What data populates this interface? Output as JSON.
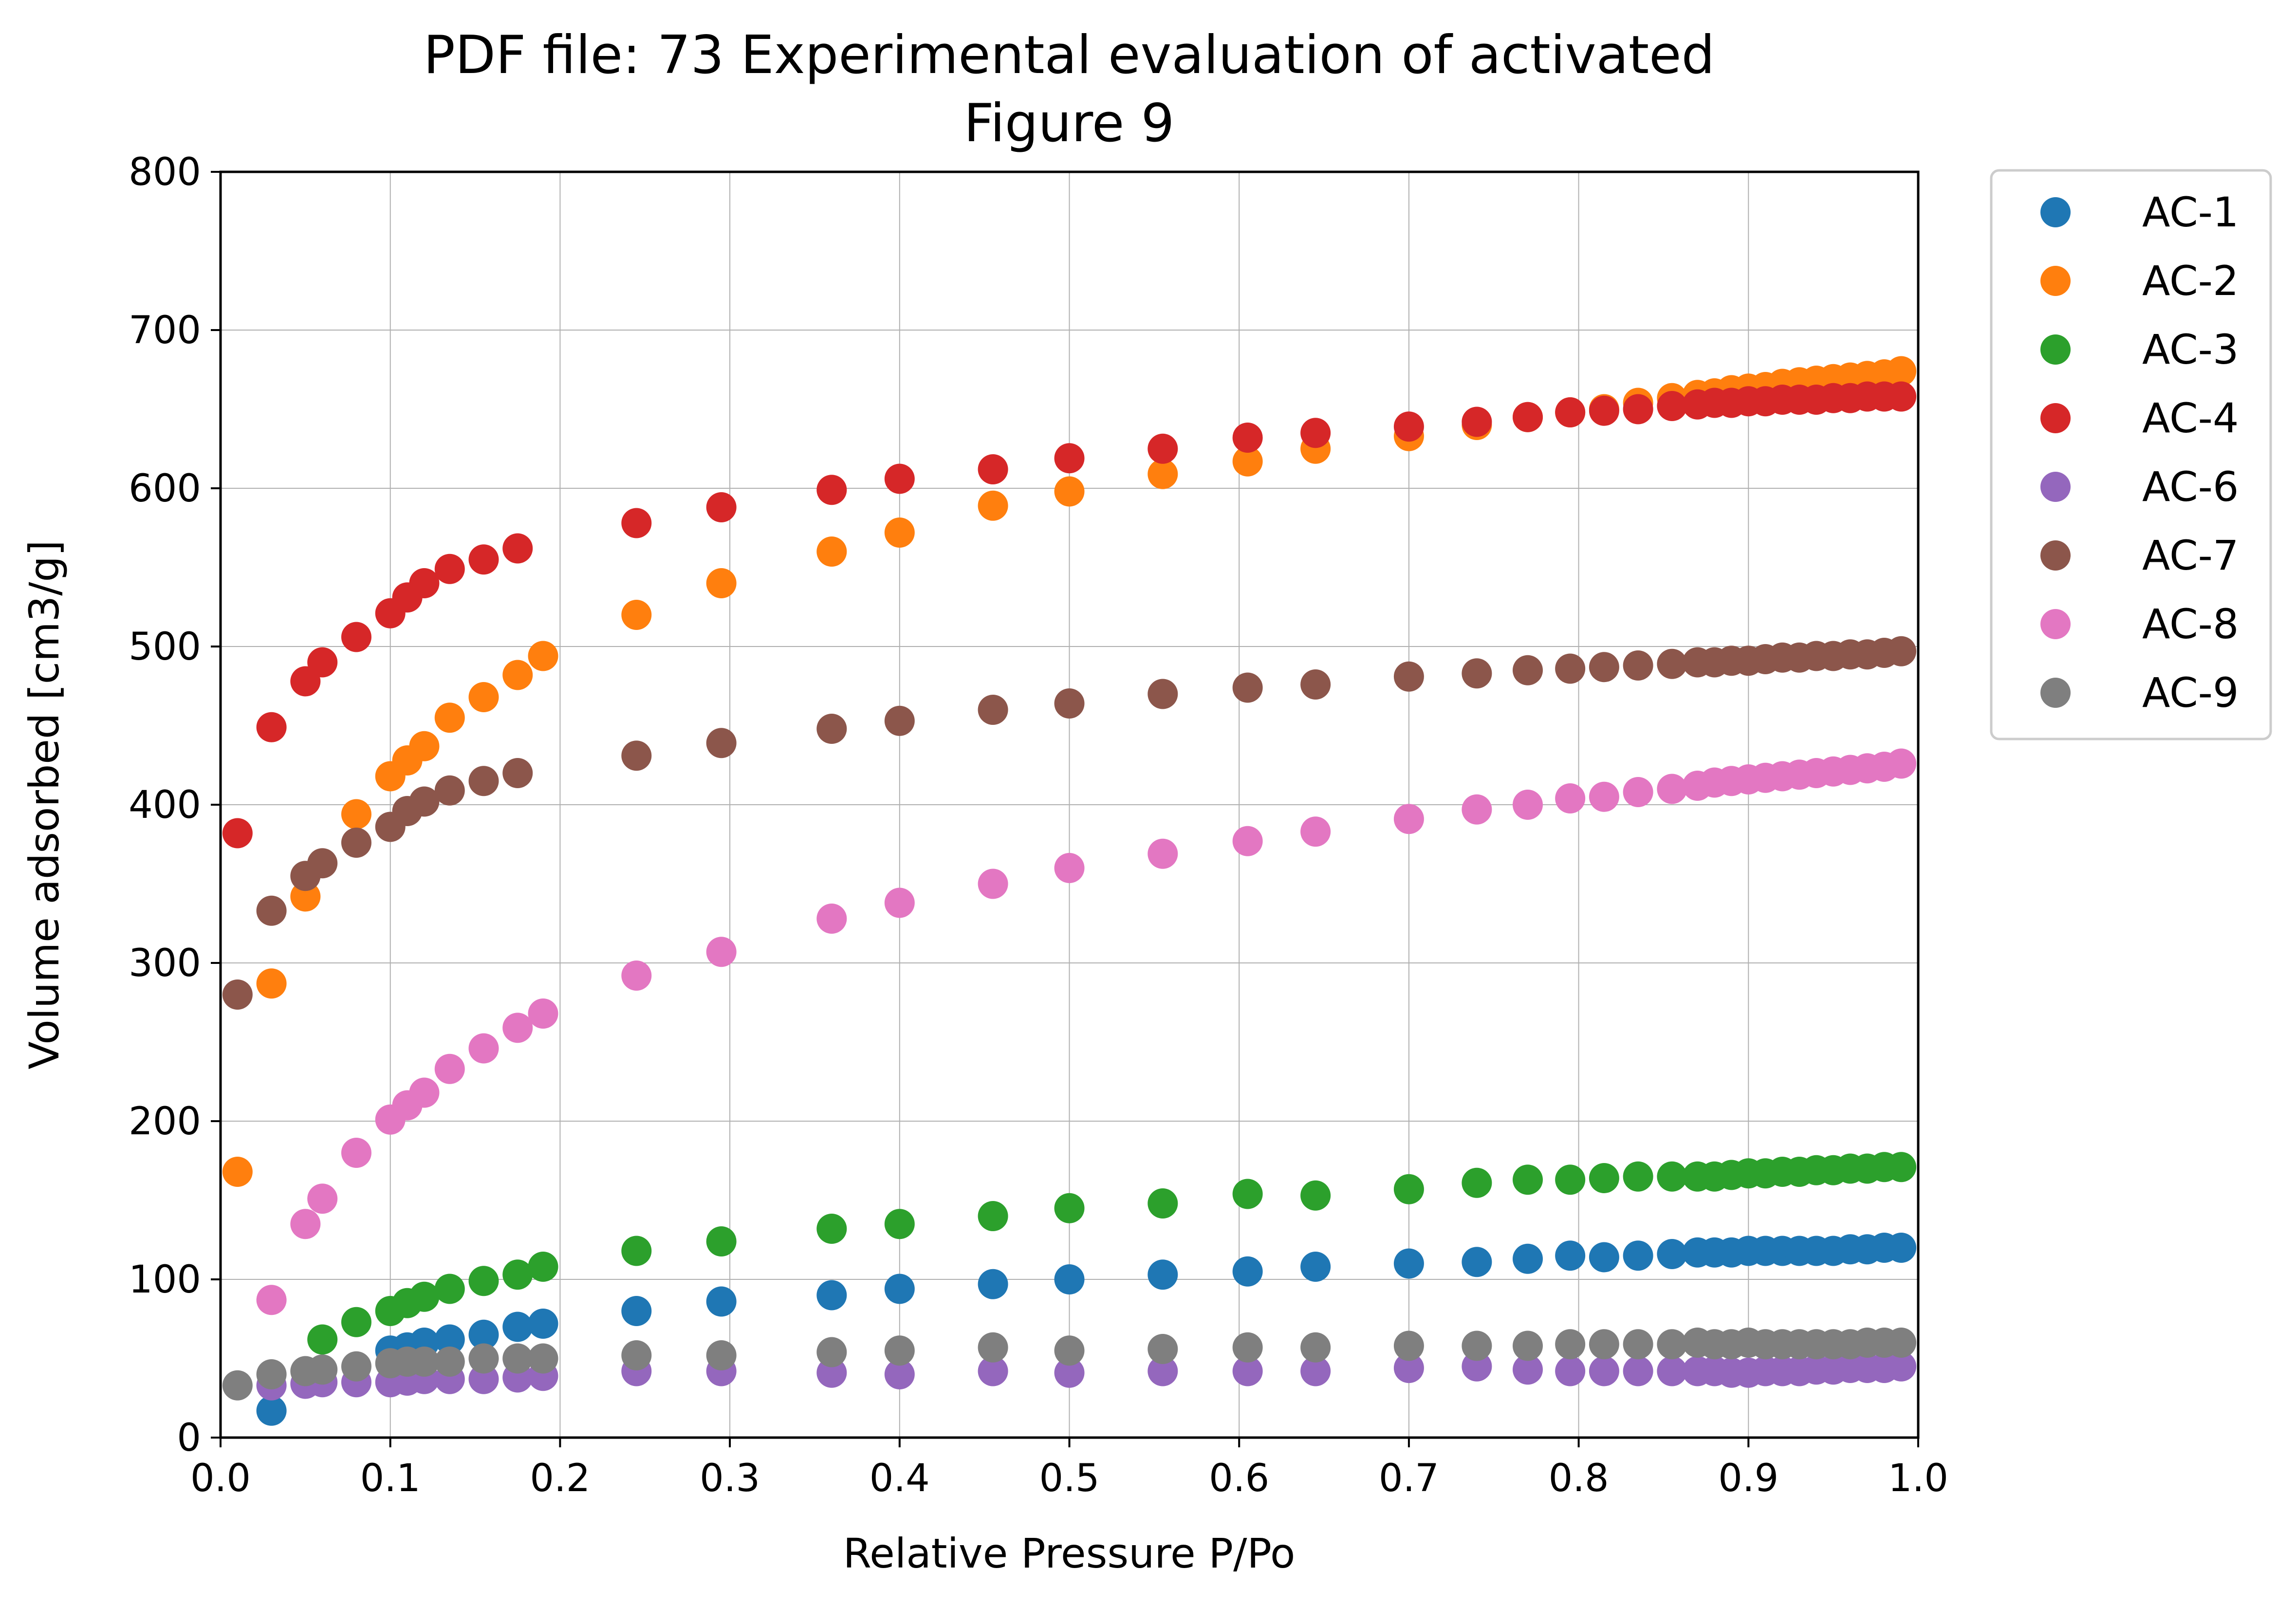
{
  "chart_data": {
    "type": "scatter",
    "title": "PDF file: 73 Experimental evaluation of activated",
    "subtitle": "Figure 9",
    "xlabel": "Relative Pressure P/Po",
    "ylabel": "Volume adsorbed [cm3/g]",
    "xlim": [
      0.0,
      1.0
    ],
    "ylim": [
      0,
      800
    ],
    "xticks": [
      "0.0",
      "0.1",
      "0.2",
      "0.3",
      "0.4",
      "0.5",
      "0.6",
      "0.7",
      "0.8",
      "0.9",
      "1.0"
    ],
    "yticks": [
      "0",
      "100",
      "200",
      "300",
      "400",
      "500",
      "600",
      "700",
      "800"
    ],
    "grid": true,
    "legend_position": "outside-right-top",
    "x": [
      0.01,
      0.03,
      0.05,
      0.06,
      0.08,
      0.1,
      0.11,
      0.12,
      0.135,
      0.155,
      0.175,
      0.19,
      0.245,
      0.295,
      0.36,
      0.4,
      0.455,
      0.5,
      0.555,
      0.605,
      0.645,
      0.7,
      0.74,
      0.77,
      0.795,
      0.815,
      0.835,
      0.855,
      0.87,
      0.88,
      0.89,
      0.9,
      0.91,
      0.92,
      0.93,
      0.94,
      0.95,
      0.96,
      0.97,
      0.98,
      0.99
    ],
    "series": [
      {
        "name": "AC-1",
        "color": "#1f77b4",
        "values": [
          null,
          17,
          null,
          null,
          null,
          55,
          57,
          60,
          62,
          65,
          70,
          72,
          80,
          86,
          90,
          94,
          97,
          100,
          103,
          105,
          108,
          110,
          111,
          113,
          115,
          114,
          115,
          116,
          117,
          117,
          117,
          118,
          118,
          118,
          118,
          118,
          118,
          119,
          119,
          120,
          120
        ]
      },
      {
        "name": "AC-2",
        "color": "#ff7f0e",
        "values": [
          168,
          287,
          342,
          null,
          394,
          418,
          428,
          437,
          455,
          468,
          482,
          494,
          520,
          540,
          560,
          572,
          589,
          598,
          609,
          617,
          625,
          633,
          640,
          645,
          648,
          650,
          654,
          657,
          659,
          660,
          662,
          663,
          664,
          666,
          667,
          668,
          669,
          670,
          671,
          672,
          674
        ]
      },
      {
        "name": "AC-3",
        "color": "#2ca02c",
        "values": [
          null,
          null,
          null,
          62,
          73,
          80,
          85,
          89,
          94,
          99,
          103,
          108,
          118,
          124,
          132,
          135,
          140,
          145,
          148,
          154,
          153,
          157,
          161,
          163,
          163,
          164,
          165,
          165,
          165,
          165,
          166,
          167,
          167,
          168,
          168,
          169,
          169,
          170,
          170,
          171,
          171
        ]
      },
      {
        "name": "AC-4",
        "color": "#d62728",
        "values": [
          382,
          449,
          478,
          490,
          506,
          521,
          531,
          540,
          549,
          555,
          562,
          null,
          578,
          588,
          599,
          606,
          612,
          619,
          625,
          632,
          635,
          639,
          642,
          645,
          648,
          649,
          650,
          652,
          653,
          654,
          654,
          655,
          655,
          656,
          656,
          656,
          657,
          657,
          658,
          658,
          658
        ]
      },
      {
        "name": "AC-6",
        "color": "#9467bd",
        "values": [
          null,
          33,
          34,
          35,
          35,
          35,
          36,
          37,
          37,
          37,
          38,
          39,
          42,
          42,
          41,
          40,
          42,
          41,
          42,
          42,
          42,
          44,
          45,
          43,
          42,
          42,
          42,
          42,
          42,
          42,
          41,
          41,
          42,
          42,
          42,
          43,
          43,
          44,
          44,
          44,
          45
        ]
      },
      {
        "name": "AC-7",
        "color": "#8c564b",
        "values": [
          280,
          333,
          355,
          363,
          376,
          386,
          396,
          402,
          409,
          415,
          420,
          null,
          431,
          439,
          448,
          453,
          460,
          464,
          470,
          474,
          476,
          481,
          483,
          485,
          486,
          487,
          488,
          489,
          490,
          490,
          491,
          491,
          492,
          493,
          493,
          494,
          494,
          495,
          495,
          496,
          497
        ]
      },
      {
        "name": "AC-8",
        "color": "#e377c2",
        "values": [
          null,
          87,
          135,
          151,
          180,
          201,
          210,
          218,
          233,
          246,
          259,
          268,
          292,
          307,
          328,
          338,
          350,
          360,
          369,
          377,
          383,
          391,
          397,
          400,
          404,
          405,
          408,
          410,
          412,
          414,
          415,
          416,
          417,
          418,
          419,
          420,
          421,
          422,
          423,
          424,
          426
        ]
      },
      {
        "name": "AC-9",
        "color": "#7f7f7f",
        "values": [
          33,
          40,
          42,
          43,
          45,
          47,
          48,
          48,
          48,
          50,
          50,
          50,
          52,
          52,
          54,
          55,
          57,
          55,
          56,
          57,
          57,
          58,
          58,
          58,
          59,
          59,
          59,
          59,
          60,
          59,
          59,
          60,
          59,
          59,
          59,
          59,
          59,
          59,
          60,
          60,
          60
        ]
      }
    ]
  }
}
